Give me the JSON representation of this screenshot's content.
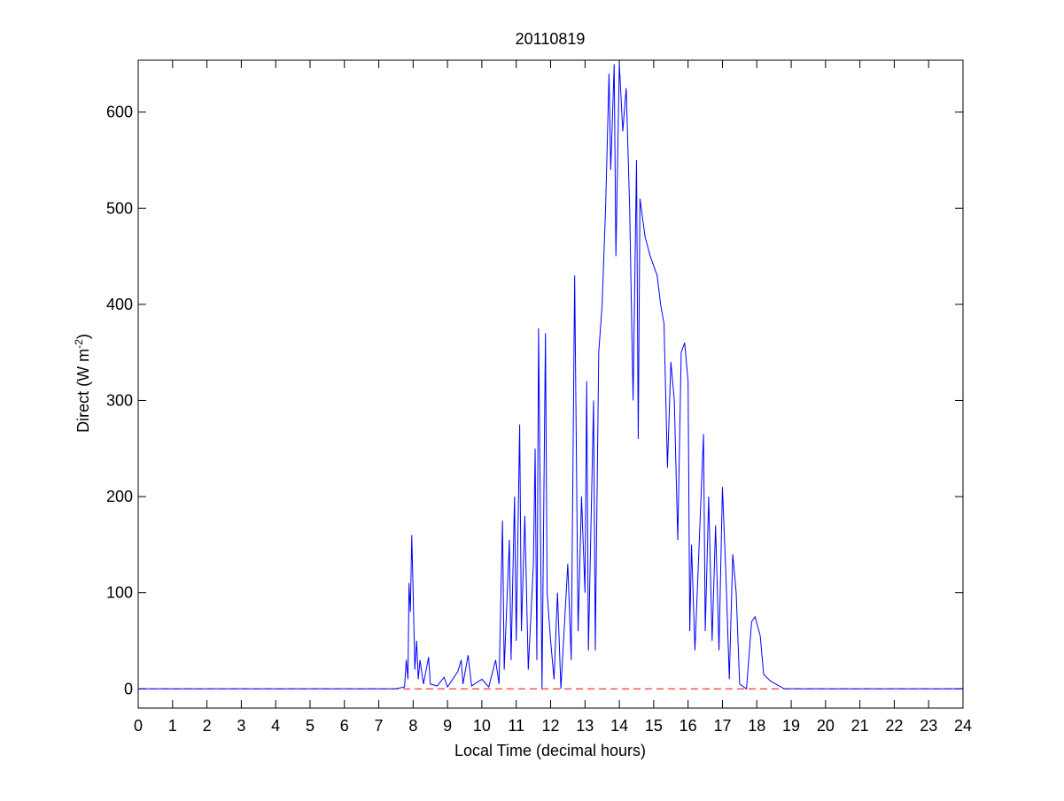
{
  "chart_data": {
    "type": "line",
    "title": "20110819",
    "xlabel": "Local Time (decimal hours)",
    "ylabel": {
      "text": "Direct (W m",
      "superscript": "-2",
      "suffix": ")"
    },
    "xlim": [
      0,
      24
    ],
    "ylim": [
      -20,
      654
    ],
    "xticks": [
      0,
      1,
      2,
      3,
      4,
      5,
      6,
      7,
      8,
      9,
      10,
      11,
      12,
      13,
      14,
      15,
      16,
      17,
      18,
      19,
      20,
      21,
      22,
      23,
      24
    ],
    "yticks": [
      0,
      100,
      200,
      300,
      400,
      500,
      600
    ],
    "series": [
      {
        "color": "#0000ff",
        "style": "solid",
        "x": [
          0,
          7.5,
          7.75,
          7.8,
          7.85,
          7.88,
          7.92,
          7.96,
          8.0,
          8.05,
          8.1,
          8.15,
          8.2,
          8.3,
          8.45,
          8.5,
          8.7,
          8.9,
          9.0,
          9.3,
          9.4,
          9.45,
          9.6,
          9.7,
          10.0,
          10.2,
          10.4,
          10.5,
          10.6,
          10.65,
          10.8,
          10.85,
          10.95,
          11.0,
          11.1,
          11.15,
          11.25,
          11.35,
          11.5,
          11.55,
          11.6,
          11.65,
          11.75,
          11.85,
          11.9,
          12.0,
          12.1,
          12.2,
          12.3,
          12.5,
          12.6,
          12.7,
          12.8,
          12.9,
          13.0,
          13.05,
          13.1,
          13.25,
          13.3,
          13.4,
          13.5,
          13.6,
          13.7,
          13.75,
          13.85,
          13.9,
          14.0,
          14.1,
          14.2,
          14.3,
          14.4,
          14.5,
          14.55,
          14.6,
          14.75,
          14.9,
          15.1,
          15.2,
          15.3,
          15.4,
          15.5,
          15.6,
          15.7,
          15.8,
          15.9,
          16.0,
          16.05,
          16.1,
          16.2,
          16.3,
          16.45,
          16.5,
          16.6,
          16.7,
          16.8,
          16.9,
          17.0,
          17.1,
          17.2,
          17.3,
          17.4,
          17.5,
          17.7,
          17.85,
          17.95,
          18.1,
          18.2,
          18.4,
          18.8,
          24
        ],
        "values": [
          0,
          0,
          2,
          30,
          10,
          110,
          80,
          160,
          100,
          20,
          50,
          10,
          30,
          5,
          33,
          5,
          3,
          12,
          2,
          18,
          30,
          5,
          35,
          3,
          10,
          2,
          30,
          5,
          175,
          20,
          155,
          30,
          200,
          50,
          275,
          60,
          180,
          20,
          130,
          250,
          30,
          375,
          0,
          370,
          100,
          50,
          10,
          100,
          0,
          130,
          30,
          430,
          60,
          200,
          100,
          320,
          40,
          300,
          40,
          350,
          400,
          500,
          640,
          540,
          650,
          450,
          650,
          580,
          625,
          500,
          300,
          550,
          260,
          510,
          470,
          450,
          430,
          400,
          380,
          230,
          340,
          300,
          155,
          350,
          360,
          320,
          60,
          150,
          40,
          130,
          265,
          60,
          200,
          50,
          170,
          40,
          210,
          120,
          10,
          140,
          100,
          5,
          0,
          70,
          75,
          55,
          15,
          8,
          0,
          0
        ]
      },
      {
        "color": "#ff0000",
        "style": "dashed",
        "x": [
          0,
          24
        ],
        "values": [
          0,
          0
        ]
      }
    ]
  }
}
